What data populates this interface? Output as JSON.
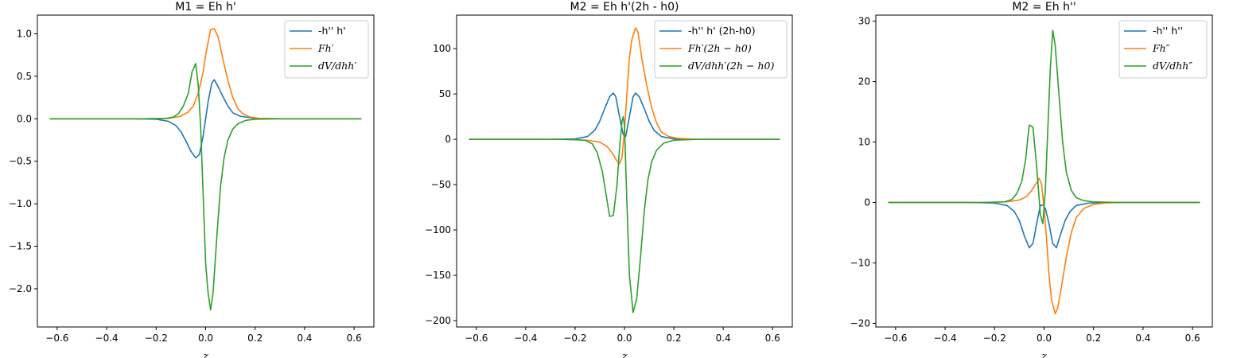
{
  "chart_data": [
    {
      "type": "line",
      "title": "M1 = Eh h'",
      "xlabel": "z",
      "ylabel": "",
      "xlim": [
        -0.68,
        0.68
      ],
      "ylim": [
        -2.45,
        1.22
      ],
      "xticks": [
        -0.6,
        -0.4,
        -0.2,
        0.0,
        0.2,
        0.4,
        0.6
      ],
      "xtick_labels": [
        "−0.6",
        "−0.4",
        "−0.2",
        "0.0",
        "0.2",
        "0.4",
        "0.6"
      ],
      "yticks": [
        -2.0,
        -1.5,
        -1.0,
        -0.5,
        0.0,
        0.5,
        1.0
      ],
      "ytick_labels": [
        "−2.0",
        "−1.5",
        "−1.0",
        "−0.5",
        "0.0",
        "0.5",
        "1.0"
      ],
      "legend_position": "top-right",
      "series": [
        {
          "name": "-h'' h'",
          "math": false,
          "color": "#1f77b4",
          "points": [
            [
              -0.63,
              0
            ],
            [
              -0.3,
              0
            ],
            [
              -0.2,
              -0.005
            ],
            [
              -0.15,
              -0.03
            ],
            [
              -0.12,
              -0.08
            ],
            [
              -0.1,
              -0.15
            ],
            [
              -0.08,
              -0.26
            ],
            [
              -0.06,
              -0.38
            ],
            [
              -0.04,
              -0.46
            ],
            [
              -0.025,
              -0.42
            ],
            [
              -0.01,
              -0.2
            ],
            [
              0.0,
              0.0
            ],
            [
              0.01,
              0.2
            ],
            [
              0.025,
              0.42
            ],
            [
              0.035,
              0.46
            ],
            [
              0.05,
              0.38
            ],
            [
              0.07,
              0.26
            ],
            [
              0.09,
              0.15
            ],
            [
              0.11,
              0.07
            ],
            [
              0.14,
              0.03
            ],
            [
              0.2,
              0.005
            ],
            [
              0.3,
              0
            ],
            [
              0.63,
              0
            ]
          ]
        },
        {
          "name": "Fh′",
          "math": true,
          "color": "#ff7f0e",
          "points": [
            [
              -0.63,
              0
            ],
            [
              -0.25,
              0
            ],
            [
              -0.15,
              0.005
            ],
            [
              -0.1,
              0.03
            ],
            [
              -0.07,
              0.08
            ],
            [
              -0.05,
              0.15
            ],
            [
              -0.03,
              0.3
            ],
            [
              -0.01,
              0.55
            ],
            [
              0.0,
              0.75
            ],
            [
              0.01,
              0.9
            ],
            [
              0.02,
              1.05
            ],
            [
              0.035,
              1.06
            ],
            [
              0.05,
              0.97
            ],
            [
              0.07,
              0.7
            ],
            [
              0.09,
              0.45
            ],
            [
              0.11,
              0.25
            ],
            [
              0.13,
              0.12
            ],
            [
              0.15,
              0.06
            ],
            [
              0.18,
              0.02
            ],
            [
              0.22,
              0.005
            ],
            [
              0.3,
              0
            ],
            [
              0.63,
              0
            ]
          ]
        },
        {
          "name": "dV/dhh′",
          "math": true,
          "color": "#2ca02c",
          "points": [
            [
              -0.63,
              0
            ],
            [
              -0.25,
              0
            ],
            [
              -0.16,
              0.005
            ],
            [
              -0.13,
              0.02
            ],
            [
              -0.11,
              0.06
            ],
            [
              -0.09,
              0.15
            ],
            [
              -0.07,
              0.3
            ],
            [
              -0.055,
              0.55
            ],
            [
              -0.04,
              0.65
            ],
            [
              -0.03,
              0.4
            ],
            [
              -0.02,
              -0.1
            ],
            [
              -0.01,
              -0.9
            ],
            [
              0.0,
              -1.7
            ],
            [
              0.01,
              -2.05
            ],
            [
              0.02,
              -2.25
            ],
            [
              0.03,
              -2.05
            ],
            [
              0.045,
              -1.4
            ],
            [
              0.06,
              -0.8
            ],
            [
              0.075,
              -0.45
            ],
            [
              0.09,
              -0.25
            ],
            [
              0.11,
              -0.12
            ],
            [
              0.13,
              -0.06
            ],
            [
              0.16,
              -0.02
            ],
            [
              0.2,
              -0.005
            ],
            [
              0.3,
              0
            ],
            [
              0.63,
              0
            ]
          ]
        }
      ]
    },
    {
      "type": "line",
      "title": "M2 = Eh h'(2h - h0)",
      "xlabel": "z",
      "ylabel": "",
      "xlim": [
        -0.68,
        0.68
      ],
      "ylim": [
        -207,
        137
      ],
      "xticks": [
        -0.6,
        -0.4,
        -0.2,
        0.0,
        0.2,
        0.4,
        0.6
      ],
      "xtick_labels": [
        "−0.6",
        "−0.4",
        "−0.2",
        "0.0",
        "0.2",
        "0.4",
        "0.6"
      ],
      "yticks": [
        -200,
        -150,
        -100,
        -50,
        0,
        50,
        100
      ],
      "ytick_labels": [
        "−200",
        "−150",
        "−100",
        "−50",
        "0",
        "50",
        "100"
      ],
      "legend_position": "top-right",
      "series": [
        {
          "name": "-h'' h' (2h-h0)",
          "math": false,
          "color": "#1f77b4",
          "points": [
            [
              -0.63,
              0
            ],
            [
              -0.3,
              0
            ],
            [
              -0.2,
              0.5
            ],
            [
              -0.15,
              3
            ],
            [
              -0.12,
              10
            ],
            [
              -0.1,
              20
            ],
            [
              -0.08,
              34
            ],
            [
              -0.06,
              47
            ],
            [
              -0.045,
              51
            ],
            [
              -0.035,
              47
            ],
            [
              -0.02,
              25
            ],
            [
              -0.005,
              5
            ],
            [
              0.005,
              3
            ],
            [
              0.02,
              25
            ],
            [
              0.035,
              47
            ],
            [
              0.045,
              51
            ],
            [
              0.06,
              47
            ],
            [
              0.08,
              34
            ],
            [
              0.1,
              20
            ],
            [
              0.12,
              10
            ],
            [
              0.15,
              3
            ],
            [
              0.2,
              0.5
            ],
            [
              0.3,
              0
            ],
            [
              0.63,
              0
            ]
          ]
        },
        {
          "name": "Fh′(2h − h0)",
          "math": true,
          "color": "#ff7f0e",
          "points": [
            [
              -0.63,
              0
            ],
            [
              -0.25,
              0
            ],
            [
              -0.15,
              -1
            ],
            [
              -0.1,
              -3
            ],
            [
              -0.07,
              -8
            ],
            [
              -0.05,
              -15
            ],
            [
              -0.03,
              -24
            ],
            [
              -0.02,
              -27
            ],
            [
              -0.01,
              -20
            ],
            [
              0.0,
              10
            ],
            [
              0.01,
              50
            ],
            [
              0.02,
              90
            ],
            [
              0.03,
              110
            ],
            [
              0.045,
              123
            ],
            [
              0.055,
              118
            ],
            [
              0.07,
              90
            ],
            [
              0.09,
              60
            ],
            [
              0.11,
              35
            ],
            [
              0.13,
              18
            ],
            [
              0.15,
              8
            ],
            [
              0.18,
              3
            ],
            [
              0.22,
              1
            ],
            [
              0.3,
              0
            ],
            [
              0.63,
              0
            ]
          ]
        },
        {
          "name": "dV/dhh′(2h − h0)",
          "math": true,
          "color": "#2ca02c",
          "points": [
            [
              -0.63,
              0
            ],
            [
              -0.25,
              0
            ],
            [
              -0.16,
              -1
            ],
            [
              -0.13,
              -5
            ],
            [
              -0.11,
              -15
            ],
            [
              -0.09,
              -35
            ],
            [
              -0.075,
              -60
            ],
            [
              -0.06,
              -85
            ],
            [
              -0.045,
              -84
            ],
            [
              -0.03,
              -50
            ],
            [
              -0.02,
              -10
            ],
            [
              -0.01,
              20
            ],
            [
              -0.005,
              25
            ],
            [
              0.0,
              15
            ],
            [
              0.01,
              -70
            ],
            [
              0.02,
              -150
            ],
            [
              0.035,
              -191
            ],
            [
              0.05,
              -175
            ],
            [
              0.065,
              -130
            ],
            [
              0.08,
              -80
            ],
            [
              0.095,
              -45
            ],
            [
              0.11,
              -25
            ],
            [
              0.13,
              -12
            ],
            [
              0.16,
              -4
            ],
            [
              0.2,
              -1
            ],
            [
              0.3,
              0
            ],
            [
              0.63,
              0
            ]
          ]
        }
      ]
    },
    {
      "type": "line",
      "title": "M2 = Eh h''",
      "xlabel": "z",
      "ylabel": "",
      "xlim": [
        -0.68,
        0.68
      ],
      "ylim": [
        -20.6,
        31
      ],
      "xticks": [
        -0.6,
        -0.4,
        -0.2,
        0.0,
        0.2,
        0.4,
        0.6
      ],
      "xtick_labels": [
        "−0.6",
        "−0.4",
        "−0.2",
        "0.0",
        "0.2",
        "0.4",
        "0.6"
      ],
      "yticks": [
        -20,
        -10,
        0,
        10,
        20,
        30
      ],
      "ytick_labels": [
        "−20",
        "−10",
        "0",
        "10",
        "20",
        "30"
      ],
      "legend_position": "top-right",
      "series": [
        {
          "name": "-h'' h''",
          "math": false,
          "color": "#1f77b4",
          "points": [
            [
              -0.63,
              0
            ],
            [
              -0.3,
              0
            ],
            [
              -0.2,
              -0.1
            ],
            [
              -0.15,
              -0.5
            ],
            [
              -0.12,
              -1.5
            ],
            [
              -0.1,
              -3
            ],
            [
              -0.08,
              -5.5
            ],
            [
              -0.06,
              -7.5
            ],
            [
              -0.045,
              -6.8
            ],
            [
              -0.03,
              -3.5
            ],
            [
              -0.015,
              -0.5
            ],
            [
              -0.005,
              -0.4
            ],
            [
              0.005,
              -1
            ],
            [
              0.02,
              -3.5
            ],
            [
              0.035,
              -6.8
            ],
            [
              0.05,
              -7.5
            ],
            [
              0.065,
              -5.5
            ],
            [
              0.085,
              -3
            ],
            [
              0.105,
              -1.5
            ],
            [
              0.13,
              -0.5
            ],
            [
              0.18,
              -0.1
            ],
            [
              0.25,
              0
            ],
            [
              0.63,
              0
            ]
          ]
        },
        {
          "name": "Fh″",
          "math": true,
          "color": "#ff7f0e",
          "points": [
            [
              -0.63,
              0
            ],
            [
              -0.25,
              0
            ],
            [
              -0.15,
              0.1
            ],
            [
              -0.1,
              0.4
            ],
            [
              -0.07,
              1
            ],
            [
              -0.05,
              2
            ],
            [
              -0.03,
              3.3
            ],
            [
              -0.02,
              4
            ],
            [
              -0.01,
              3
            ],
            [
              0.0,
              -1
            ],
            [
              0.01,
              -6
            ],
            [
              0.02,
              -12
            ],
            [
              0.03,
              -16
            ],
            [
              0.045,
              -18.4
            ],
            [
              0.055,
              -17.5
            ],
            [
              0.07,
              -14
            ],
            [
              0.09,
              -9
            ],
            [
              0.11,
              -5
            ],
            [
              0.13,
              -2.5
            ],
            [
              0.16,
              -1
            ],
            [
              0.2,
              -0.3
            ],
            [
              0.25,
              -0.1
            ],
            [
              0.3,
              0
            ],
            [
              0.63,
              0
            ]
          ]
        },
        {
          "name": "dV/dhh″",
          "math": true,
          "color": "#2ca02c",
          "points": [
            [
              -0.63,
              0
            ],
            [
              -0.25,
              0
            ],
            [
              -0.16,
              0.1
            ],
            [
              -0.13,
              0.5
            ],
            [
              -0.11,
              1.5
            ],
            [
              -0.09,
              3.5
            ],
            [
              -0.075,
              7
            ],
            [
              -0.06,
              12.8
            ],
            [
              -0.045,
              12.5
            ],
            [
              -0.03,
              6
            ],
            [
              -0.015,
              -2
            ],
            [
              -0.005,
              -3.5
            ],
            [
              0.005,
              2
            ],
            [
              0.015,
              12
            ],
            [
              0.025,
              22
            ],
            [
              0.035,
              28.5
            ],
            [
              0.045,
              26
            ],
            [
              0.06,
              18
            ],
            [
              0.075,
              10
            ],
            [
              0.09,
              5
            ],
            [
              0.11,
              2
            ],
            [
              0.13,
              0.8
            ],
            [
              0.16,
              0.3
            ],
            [
              0.2,
              0.1
            ],
            [
              0.3,
              0
            ],
            [
              0.63,
              0
            ]
          ]
        }
      ]
    }
  ]
}
